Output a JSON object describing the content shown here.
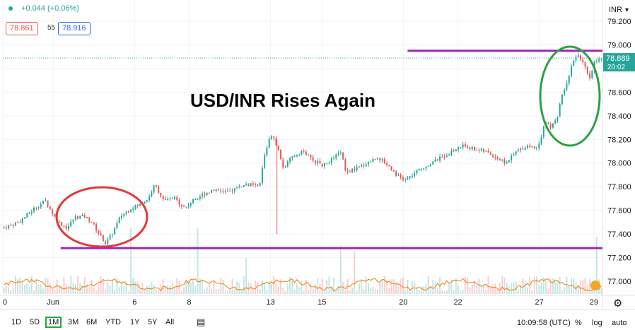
{
  "header": {
    "change": "+0.044 (+0.06%)",
    "bid": "78.861",
    "spread": "55",
    "ask": "78.916"
  },
  "currency": "INR",
  "last_price": "78.889",
  "countdown": "20:02",
  "annotation": "USD/INR Rises Again",
  "colors": {
    "up": "#26a69a",
    "down": "#ef5350",
    "price_line": "#26a69a",
    "resistance": "#9c27b0",
    "support": "#9c27b0",
    "circle_low": "#e53935",
    "circle_high": "#2ea043",
    "volume_ma": "#f57c00"
  },
  "ranges": [
    "1D",
    "5D",
    "1M",
    "3M",
    "6M",
    "YTD",
    "1Y",
    "5Y",
    "All"
  ],
  "active_range": "1M",
  "clock": "10:09:58 (UTC)",
  "right_buttons": [
    "%",
    "log",
    "auto"
  ],
  "chart_data": {
    "type": "candlestick",
    "title": "",
    "xlabel": "",
    "ylabel": "",
    "ylim": [
      76.88,
      79.38
    ],
    "y_ticks": [
      79.2,
      79.0,
      78.8,
      78.6,
      78.4,
      78.2,
      78.0,
      77.8,
      77.6,
      77.4,
      77.2,
      77.0
    ],
    "y_tick_labels": [
      "79.200",
      "79.000",
      "78.800",
      "78.600",
      "78.400",
      "78.200",
      "78.000",
      "77.800",
      "77.600",
      "77.400",
      "77.200",
      "77.000"
    ],
    "x_tick_labels": [
      "0",
      "Jun",
      "6",
      "8",
      "13",
      "15",
      "20",
      "22",
      "27",
      "29"
    ],
    "x_tick_positions": [
      0,
      4.7,
      12.3,
      17.4,
      25.0,
      29.8,
      37.4,
      42.5,
      50.1,
      55.2
    ],
    "x_range": [
      0,
      56
    ],
    "price_path": [
      [
        0,
        77.45
      ],
      [
        1.5,
        77.5
      ],
      [
        3,
        77.62
      ],
      [
        4,
        77.68
      ],
      [
        4.6,
        77.58
      ],
      [
        5.2,
        77.5
      ],
      [
        6,
        77.45
      ],
      [
        6.7,
        77.54
      ],
      [
        7.6,
        77.55
      ],
      [
        8.3,
        77.5
      ],
      [
        9,
        77.4
      ],
      [
        9.6,
        77.32
      ],
      [
        10.2,
        77.4
      ],
      [
        11,
        77.55
      ],
      [
        12,
        77.62
      ],
      [
        12.8,
        77.65
      ],
      [
        13.6,
        77.7
      ],
      [
        14.2,
        77.82
      ],
      [
        15,
        77.68
      ],
      [
        16,
        77.7
      ],
      [
        17,
        77.62
      ],
      [
        18,
        77.7
      ],
      [
        19,
        77.75
      ],
      [
        20,
        77.78
      ],
      [
        21,
        77.75
      ],
      [
        22,
        77.8
      ],
      [
        23,
        77.82
      ],
      [
        23.8,
        77.8
      ],
      [
        24,
        77.82
      ],
      [
        24.4,
        78.05
      ],
      [
        25,
        78.25
      ],
      [
        25.6,
        78.15
      ],
      [
        26.2,
        77.95
      ],
      [
        27,
        78.05
      ],
      [
        28,
        78.1
      ],
      [
        29,
        78.02
      ],
      [
        30,
        77.98
      ],
      [
        31,
        78.05
      ],
      [
        31.6,
        78.1
      ],
      [
        32,
        77.92
      ],
      [
        33,
        77.95
      ],
      [
        34,
        78.0
      ],
      [
        35,
        78.05
      ],
      [
        36,
        77.98
      ],
      [
        36.8,
        77.9
      ],
      [
        37.5,
        77.85
      ],
      [
        38,
        77.88
      ],
      [
        39,
        77.95
      ],
      [
        40,
        78.0
      ],
      [
        41,
        78.05
      ],
      [
        42,
        78.1
      ],
      [
        43,
        78.15
      ],
      [
        44,
        78.12
      ],
      [
        45,
        78.1
      ],
      [
        46,
        78.05
      ],
      [
        47,
        78.0
      ],
      [
        48,
        78.1
      ],
      [
        49,
        78.15
      ],
      [
        49.8,
        78.12
      ],
      [
        50.2,
        78.2
      ],
      [
        50.6,
        78.35
      ],
      [
        51.2,
        78.3
      ],
      [
        51.8,
        78.4
      ],
      [
        52.3,
        78.6
      ],
      [
        52.8,
        78.72
      ],
      [
        53.3,
        78.88
      ],
      [
        53.8,
        78.92
      ],
      [
        54.3,
        78.82
      ],
      [
        54.8,
        78.7
      ],
      [
        55.2,
        78.85
      ],
      [
        55.6,
        78.89
      ]
    ],
    "spikes": [
      [
        25.6,
        77.4,
        78.2
      ]
    ],
    "resistance_level": 78.95,
    "resistance_x_range": [
      37.8,
      56
    ],
    "support_level": 77.28,
    "support_x_range": [
      5.4,
      56
    ],
    "current_price": 78.889
  }
}
